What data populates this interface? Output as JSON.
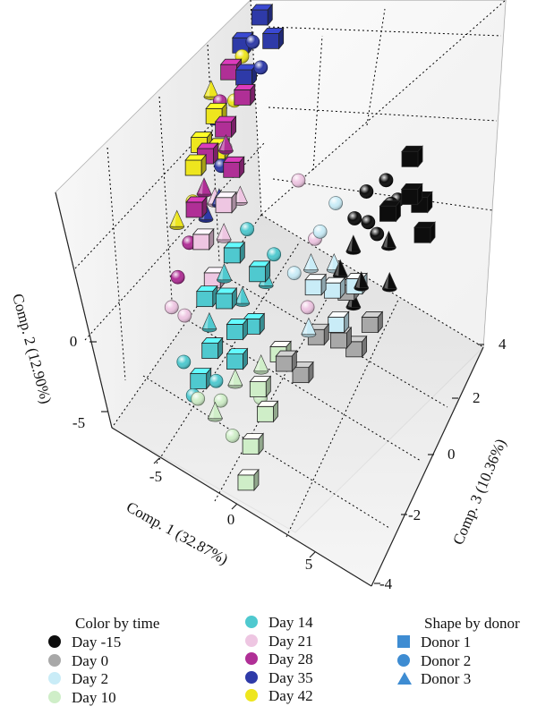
{
  "chart_data": {
    "type": "scatter",
    "projection": "3d",
    "axes": {
      "x": {
        "label": "Comp. 1 (32.87%)",
        "ticks": [
          "-5",
          "0",
          "5"
        ],
        "range": [
          -8,
          8
        ]
      },
      "y": {
        "label": "Comp. 2 (12.90%)",
        "ticks": [
          "-5",
          "0"
        ],
        "range": [
          -6,
          5
        ]
      },
      "z": {
        "label": "Comp. 3 (10.36%)",
        "ticks": [
          "-4",
          "-2",
          "0",
          "2",
          "4"
        ],
        "range": [
          -4,
          4
        ]
      }
    },
    "grid": true,
    "legend_position": "bottom",
    "color_legend": {
      "title": "Color by time",
      "items": [
        {
          "label": "Day -15",
          "color": "#0d0d0d"
        },
        {
          "label": "Day 0",
          "color": "#a8a8a8"
        },
        {
          "label": "Day 2",
          "color": "#c9ecf7"
        },
        {
          "label": "Day 10",
          "color": "#cfeec8"
        },
        {
          "label": "Day 14",
          "color": "#4fc9cf"
        },
        {
          "label": "Day 21",
          "color": "#eec6e2"
        },
        {
          "label": "Day 28",
          "color": "#b02f96"
        },
        {
          "label": "Day 35",
          "color": "#2e3aa8"
        },
        {
          "label": "Day 42",
          "color": "#eee61e"
        }
      ]
    },
    "shape_legend": {
      "title": "Shape by donor",
      "color": "#3e8cd2",
      "items": [
        {
          "label": "Donor 1",
          "shape": "square"
        },
        {
          "label": "Donor 2",
          "shape": "circle"
        },
        {
          "label": "Donor 3",
          "shape": "triangle"
        }
      ]
    },
    "series": [
      {
        "name": "Day -15",
        "points": [
          [
            7.2,
            3.6,
            3.2,
            "square"
          ],
          [
            7.6,
            3.0,
            2.5,
            "square"
          ],
          [
            6.5,
            2.4,
            2.0,
            "square"
          ],
          [
            6.8,
            1.0,
            3.4,
            "square"
          ],
          [
            7.4,
            0.7,
            2.8,
            "square"
          ],
          [
            5.0,
            2.4,
            2.2,
            "circle"
          ],
          [
            5.4,
            2.0,
            3.0,
            "circle"
          ],
          [
            4.6,
            1.8,
            1.6,
            "circle"
          ],
          [
            5.8,
            1.5,
            2.7,
            "circle"
          ],
          [
            4.9,
            1.2,
            2.0,
            "circle"
          ],
          [
            5.6,
            0.9,
            3.2,
            "circle"
          ],
          [
            6.1,
            1.9,
            1.5,
            "circle"
          ],
          [
            4.2,
            0.5,
            1.5,
            "triangle"
          ],
          [
            4.6,
            -0.6,
            1.2,
            "triangle"
          ],
          [
            5.3,
            -0.2,
            2.5,
            "triangle"
          ],
          [
            4.0,
            -1.5,
            1.0,
            "triangle"
          ],
          [
            5.1,
            -1.8,
            2.2,
            "triangle"
          ],
          [
            3.9,
            0.2,
            0.8,
            "triangle"
          ]
        ]
      },
      {
        "name": "Day 0",
        "points": [
          [
            3.0,
            -1.5,
            -0.5,
            "square"
          ],
          [
            3.5,
            -2.4,
            0.2,
            "square"
          ],
          [
            2.6,
            -2.2,
            -1.4,
            "square"
          ],
          [
            4.0,
            -3.0,
            0.5,
            "square"
          ],
          [
            3.8,
            -1.0,
            0.9,
            "square"
          ],
          [
            2.2,
            -1.3,
            -1.8,
            "square"
          ],
          [
            4.5,
            -2.6,
            1.2,
            "square"
          ]
        ]
      },
      {
        "name": "Day 2",
        "points": [
          [
            3.2,
            0.5,
            -0.2,
            "square"
          ],
          [
            3.6,
            -0.3,
            0.4,
            "square"
          ],
          [
            4.2,
            -0.8,
            1.1,
            "square"
          ],
          [
            3.9,
            -1.2,
            0.0,
            "square"
          ],
          [
            3.1,
            1.6,
            0.8,
            "circle"
          ],
          [
            3.5,
            2.0,
            1.6,
            "circle"
          ],
          [
            2.5,
            1.2,
            -0.5,
            "circle"
          ],
          [
            2.8,
            0.8,
            0.2,
            "triangle"
          ],
          [
            3.4,
            0.1,
            0.9,
            "triangle"
          ],
          [
            2.9,
            -0.9,
            -0.7,
            "triangle"
          ]
        ]
      },
      {
        "name": "Day 10",
        "points": [
          [
            0.8,
            -2.3,
            -2.4,
            "square"
          ],
          [
            1.2,
            -3.0,
            -2.6,
            "square"
          ],
          [
            0.5,
            -4.0,
            -3.2,
            "square"
          ],
          [
            0.0,
            -5.5,
            -3.5,
            "square"
          ],
          [
            1.5,
            -1.6,
            -1.5,
            "square"
          ],
          [
            -1.5,
            -3.4,
            -2.8,
            "circle"
          ],
          [
            -0.8,
            -4.3,
            -3.1,
            "circle"
          ],
          [
            0.2,
            -3.6,
            -2.0,
            "circle"
          ],
          [
            -2.2,
            -2.8,
            -3.4,
            "circle"
          ],
          [
            1.4,
            -2.5,
            -1.2,
            "circle"
          ],
          [
            -1.0,
            -3.0,
            -2.2,
            "triangle"
          ],
          [
            0.5,
            -2.2,
            -1.8,
            "triangle"
          ],
          [
            -1.8,
            -3.8,
            -3.0,
            "triangle"
          ]
        ]
      },
      {
        "name": "Day 14",
        "points": [
          [
            -1.5,
            -0.5,
            -1.5,
            "square"
          ],
          [
            -0.8,
            -1.2,
            -1.8,
            "square"
          ],
          [
            -2.0,
            -1.8,
            -2.4,
            "square"
          ],
          [
            -1.0,
            -2.4,
            -2.0,
            "square"
          ],
          [
            -2.6,
            -2.8,
            -2.9,
            "square"
          ],
          [
            0.0,
            0.2,
            -0.6,
            "square"
          ],
          [
            -1.2,
            0.8,
            -0.8,
            "square"
          ],
          [
            -2.4,
            -0.4,
            -1.8,
            "square"
          ],
          [
            -0.4,
            -1.6,
            -1.2,
            "square"
          ],
          [
            -2.8,
            -3.2,
            -3.2,
            "circle"
          ],
          [
            -3.2,
            -2.1,
            -3.0,
            "circle"
          ],
          [
            -1.8,
            -2.9,
            -2.6,
            "circle"
          ],
          [
            -0.6,
            1.4,
            -0.2,
            "circle"
          ],
          [
            0.6,
            0.5,
            0.0,
            "circle"
          ],
          [
            -1.5,
            0.3,
            -1.2,
            "triangle"
          ],
          [
            -0.9,
            -0.8,
            -1.0,
            "triangle"
          ],
          [
            -2.2,
            -1.2,
            -2.0,
            "triangle"
          ],
          [
            0.2,
            -0.3,
            -0.4,
            "triangle"
          ]
        ]
      },
      {
        "name": "Day 21",
        "points": [
          [
            -3.2,
            0.5,
            -0.8,
            "square"
          ],
          [
            -2.6,
            -0.6,
            -1.1,
            "square"
          ],
          [
            -2.0,
            1.8,
            -0.1,
            "square"
          ],
          [
            -4.5,
            -1.4,
            -2.1,
            "circle"
          ],
          [
            -3.4,
            -1.0,
            -2.3,
            "circle"
          ],
          [
            -2.6,
            2.6,
            1.0,
            "circle"
          ],
          [
            1.2,
            2.0,
            1.6,
            "circle"
          ],
          [
            2.0,
            0.2,
            1.2,
            "circle"
          ],
          [
            1.8,
            -1.7,
            0.2,
            "circle"
          ],
          [
            -3.0,
            1.2,
            0.2,
            "triangle"
          ],
          [
            -2.2,
            0.6,
            -0.3,
            "triangle"
          ],
          [
            -1.6,
            1.5,
            0.5,
            "triangle"
          ]
        ]
      },
      {
        "name": "Day 28",
        "points": [
          [
            -3.4,
            2.6,
            0.5,
            "square"
          ],
          [
            -2.7,
            3.2,
            1.2,
            "square"
          ],
          [
            -2.2,
            2.1,
            0.8,
            "square"
          ],
          [
            -2.0,
            3.9,
            2.0,
            "square"
          ],
          [
            -3.0,
            4.2,
            2.3,
            "square"
          ],
          [
            -3.6,
            1.4,
            -0.5,
            "square"
          ],
          [
            -4.3,
            -0.6,
            -1.6,
            "circle"
          ],
          [
            -3.8,
            0.4,
            -1.0,
            "circle"
          ],
          [
            -3.1,
            3.7,
            1.6,
            "circle"
          ],
          [
            -2.5,
            2.8,
            1.0,
            "triangle"
          ],
          [
            -3.3,
            1.8,
            0.0,
            "triangle"
          ]
        ]
      },
      {
        "name": "Day 35",
        "points": [
          [
            -1.8,
            5.5,
            3.6,
            "square"
          ],
          [
            -1.1,
            5.0,
            3.4,
            "square"
          ],
          [
            -2.6,
            4.8,
            2.9,
            "square"
          ],
          [
            -2.3,
            4.0,
            2.5,
            "square"
          ],
          [
            -1.4,
            4.4,
            2.8,
            "circle"
          ],
          [
            -3.5,
            3.0,
            1.4,
            "circle"
          ],
          [
            -2.9,
            1.9,
            0.8,
            "circle"
          ],
          [
            -2.0,
            4.9,
            3.1,
            "circle"
          ],
          [
            -3.3,
            0.9,
            -0.2,
            "triangle"
          ],
          [
            -2.7,
            1.3,
            0.2,
            "triangle"
          ]
        ]
      },
      {
        "name": "Day 42",
        "points": [
          [
            -3.8,
            2.8,
            0.6,
            "square"
          ],
          [
            -3.3,
            3.4,
            1.3,
            "square"
          ],
          [
            -4.0,
            2.2,
            0.2,
            "square"
          ],
          [
            -3.1,
            2.4,
            0.9,
            "square"
          ],
          [
            -2.4,
            4.6,
            2.7,
            "circle"
          ],
          [
            -3.9,
            1.3,
            -0.3,
            "circle"
          ],
          [
            -2.5,
            3.6,
            1.9,
            "circle"
          ],
          [
            -4.6,
            0.8,
            -0.8,
            "triangle"
          ],
          [
            -3.7,
            3.8,
            1.7,
            "triangle"
          ]
        ]
      }
    ]
  }
}
